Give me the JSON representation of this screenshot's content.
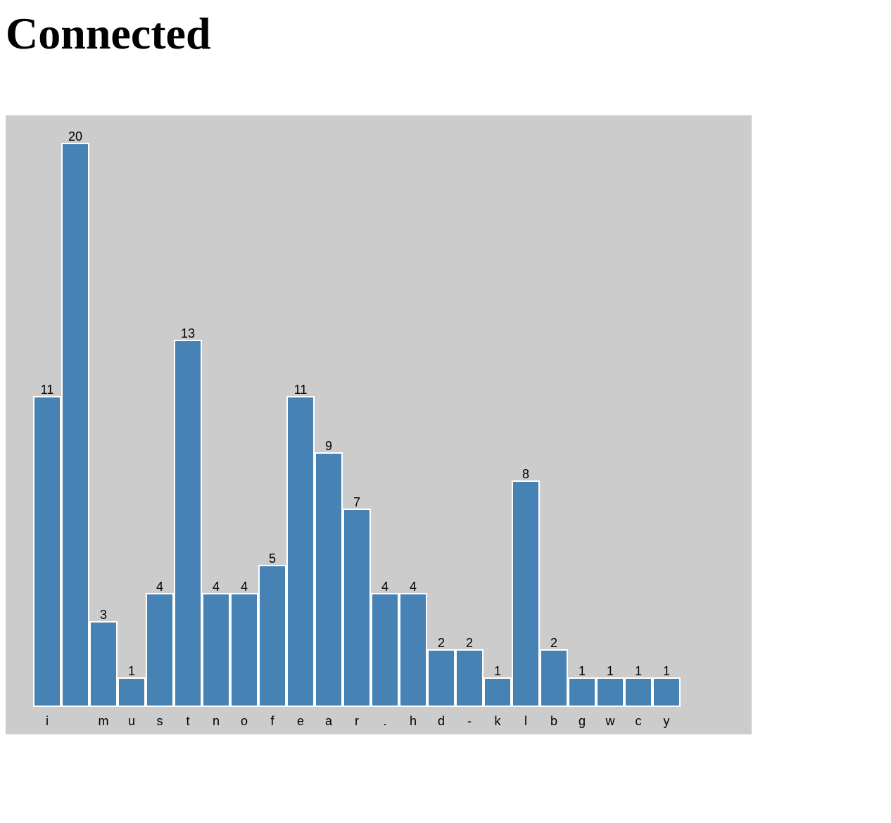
{
  "page": {
    "title": "Connected"
  },
  "colors": {
    "plot_background": "#cccccc",
    "bar_fill": "#4682b4",
    "bar_stroke": "#ffffff",
    "text": "#000000"
  },
  "chart_data": {
    "type": "bar",
    "title": "",
    "xlabel": "",
    "ylabel": "",
    "grid": false,
    "legend": "none",
    "ylim": [
      0,
      20
    ],
    "categories": [
      "i",
      " ",
      "m",
      "u",
      "s",
      "t",
      "n",
      "o",
      "f",
      "e",
      "a",
      "r",
      ".",
      "h",
      "d",
      "-",
      "k",
      "l",
      "b",
      "g",
      "w",
      "c",
      "y"
    ],
    "values": [
      11,
      20,
      3,
      1,
      4,
      13,
      4,
      4,
      5,
      11,
      9,
      7,
      4,
      4,
      2,
      2,
      1,
      8,
      2,
      1,
      1,
      1,
      1
    ],
    "data_labels": [
      "11",
      "20",
      "3",
      "1",
      "4",
      "13",
      "4",
      "4",
      "5",
      "11",
      "9",
      "7",
      "4",
      "4",
      "2",
      "2",
      "1",
      "8",
      "2",
      "1",
      "1",
      "1",
      "1"
    ]
  }
}
